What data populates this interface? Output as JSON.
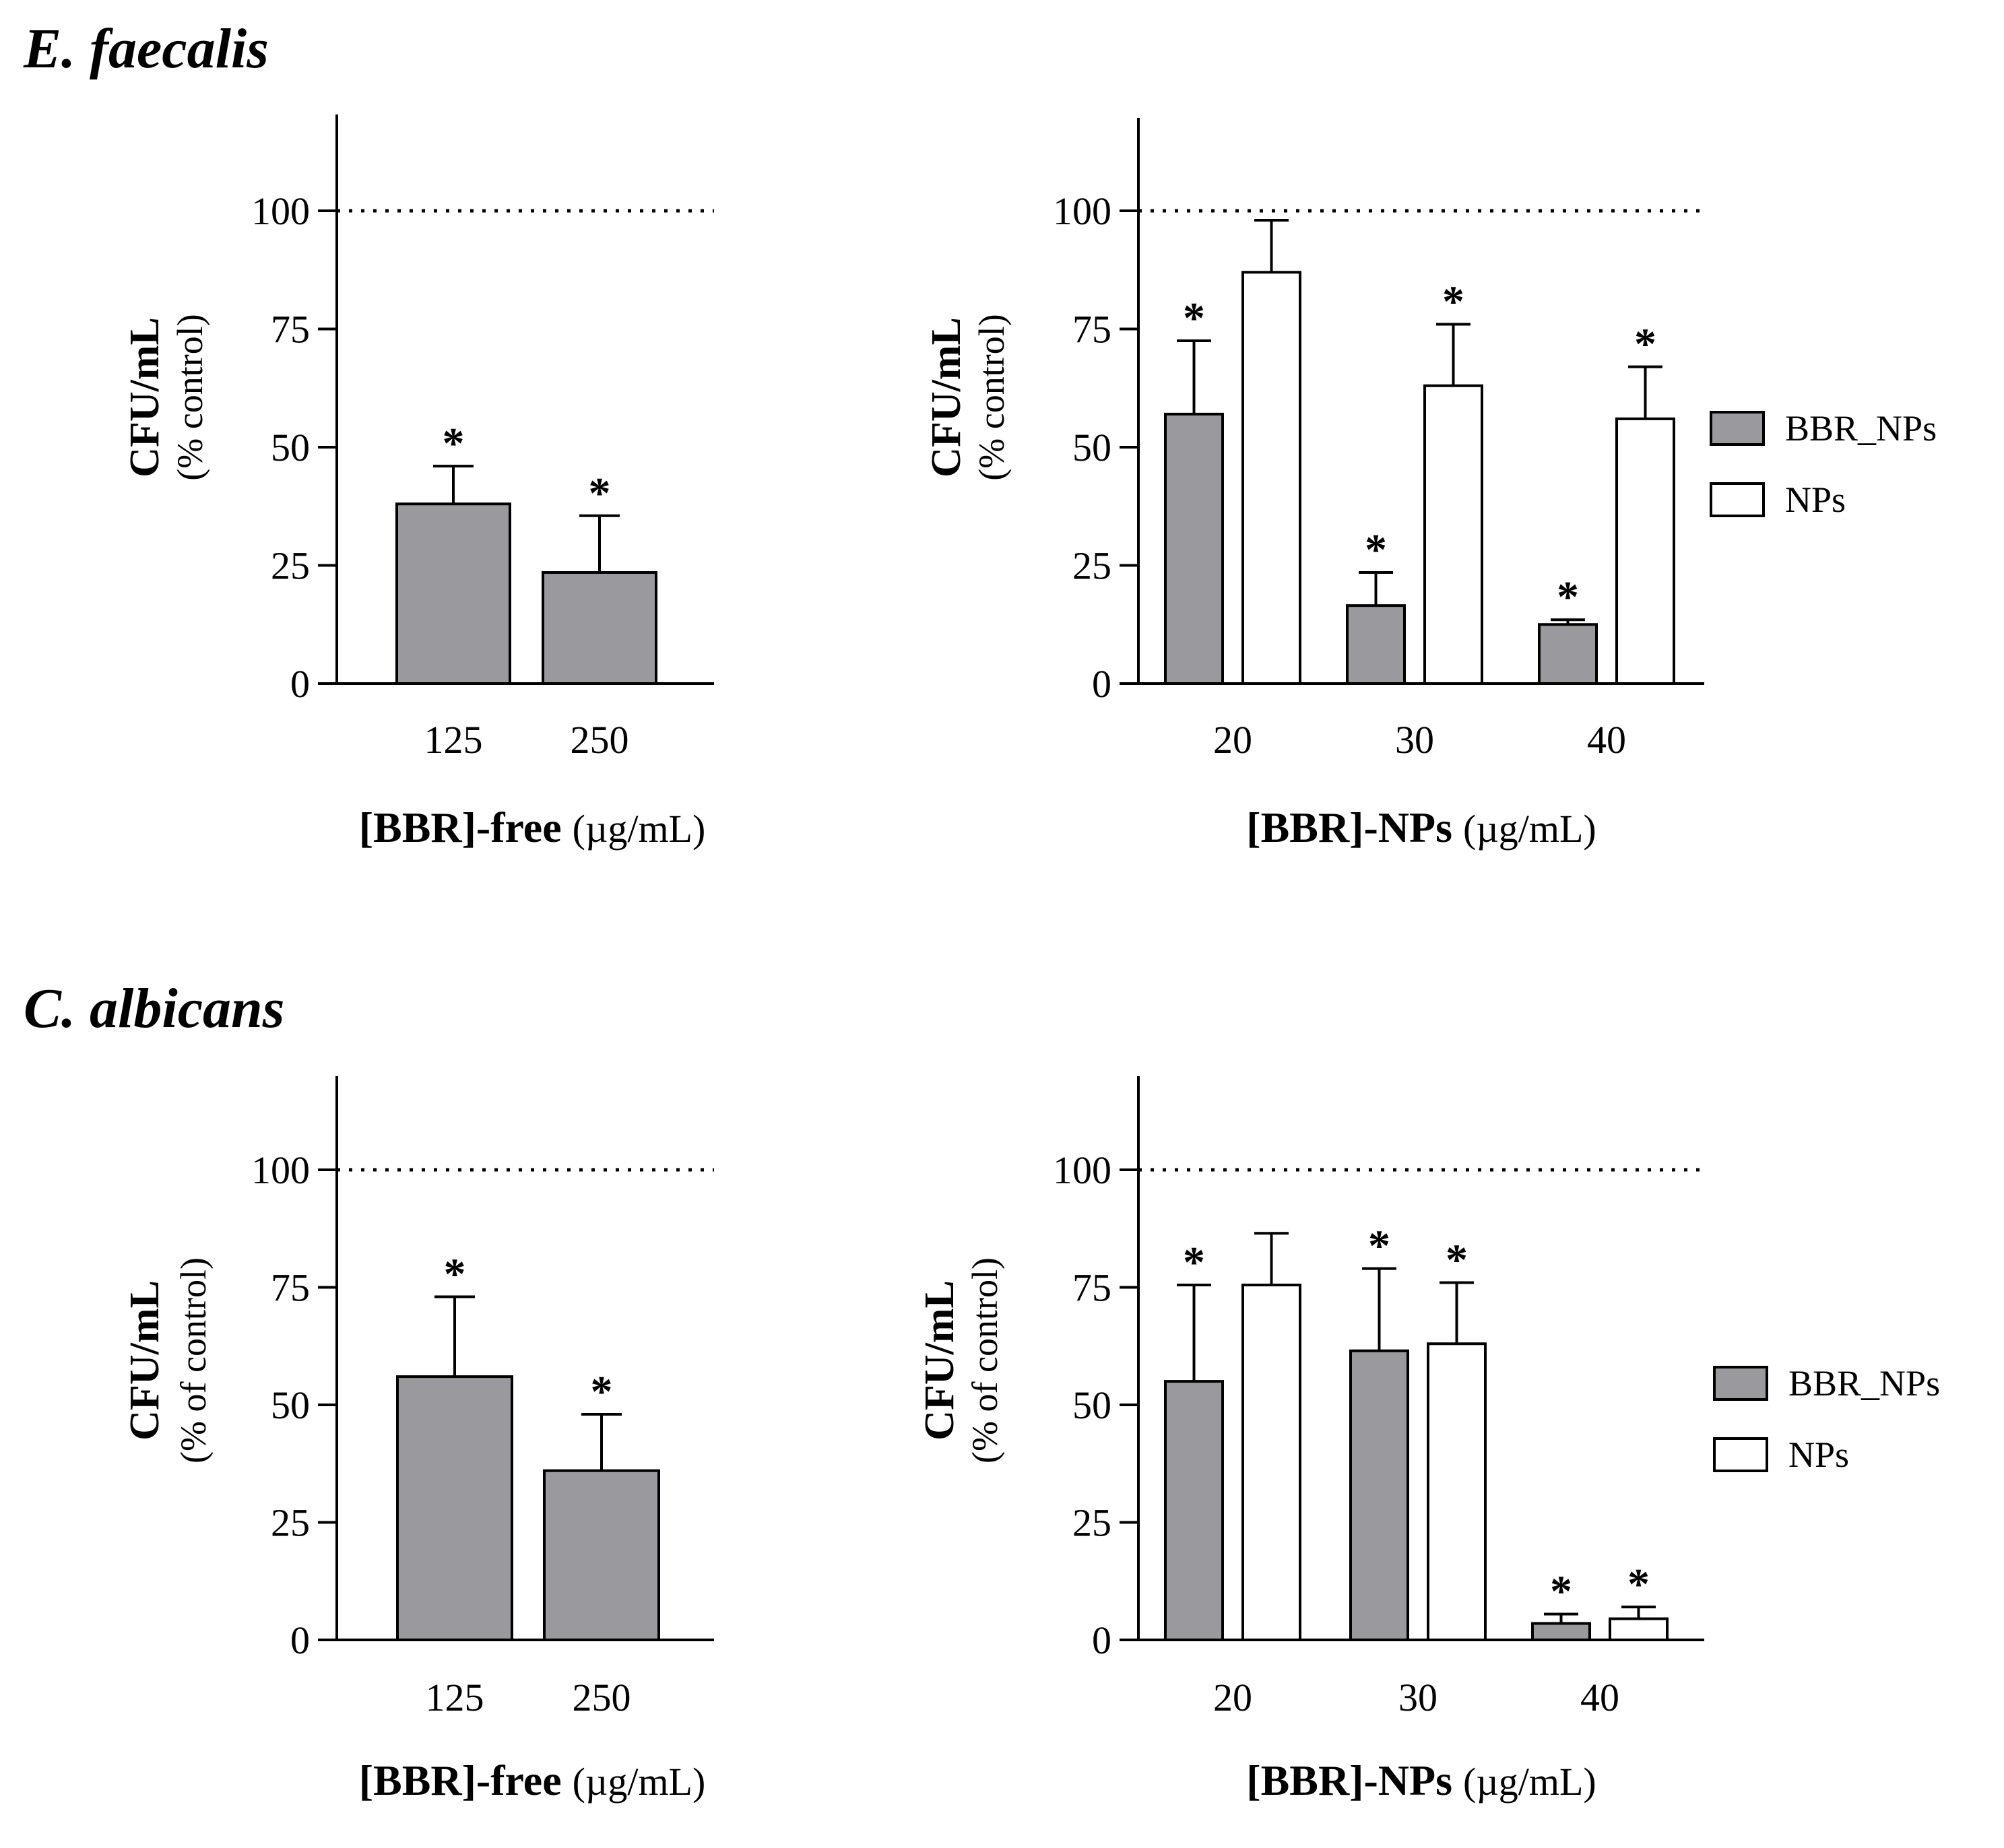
{
  "sections": [
    {
      "title": "E. faecalis"
    },
    {
      "title": "C. albicans"
    }
  ],
  "colors": {
    "bbr_fill": "#9a9a9e",
    "np_fill": "#ffffff",
    "stroke": "#000000"
  },
  "chart_data": [
    {
      "type": "bar",
      "section": "E. faecalis",
      "categories": [
        "125",
        "250"
      ],
      "series": [
        {
          "values": [
            38,
            23.5
          ],
          "errors": [
            8,
            12
          ],
          "significant": [
            true,
            true
          ],
          "fill": "#9a9a9e"
        }
      ],
      "yticks": [
        "0",
        "25",
        "50",
        "75",
        "100"
      ],
      "ylim": [
        0,
        120
      ],
      "reference_line": 100,
      "ylabel": "CFU/mL",
      "ylabel_sub": "(% control)",
      "xlabel": "[BBR]-free",
      "xlabel_unit": "(µg/mL)",
      "legend": []
    },
    {
      "type": "bar",
      "section": "E. faecalis",
      "categories": [
        "20",
        "30",
        "40"
      ],
      "series": [
        {
          "name": "BBR_NPs",
          "values": [
            57,
            16.5,
            12.5
          ],
          "errors": [
            15.5,
            7,
            1
          ],
          "significant": [
            true,
            true,
            true
          ],
          "fill": "#9a9a9e"
        },
        {
          "name": "NPs",
          "values": [
            87,
            63,
            56
          ],
          "errors": [
            11,
            13,
            11
          ],
          "significant": [
            false,
            true,
            true
          ],
          "fill": "#ffffff"
        }
      ],
      "yticks": [
        "0",
        "25",
        "50",
        "75",
        "100"
      ],
      "ylim": [
        0,
        120
      ],
      "reference_line": 100,
      "ylabel": "CFU/mL",
      "ylabel_sub": "(% control)",
      "xlabel": "[BBR]-NPs",
      "xlabel_unit": "(µg/mL)",
      "legend": [
        "BBR_NPs",
        "NPs"
      ],
      "legend_position": "right"
    },
    {
      "type": "bar",
      "section": "C. albicans",
      "categories": [
        "125",
        "250"
      ],
      "series": [
        {
          "values": [
            56,
            36
          ],
          "errors": [
            17,
            12
          ],
          "significant": [
            true,
            true
          ],
          "fill": "#9a9a9e"
        }
      ],
      "yticks": [
        "0",
        "25",
        "50",
        "75",
        "100"
      ],
      "ylim": [
        0,
        120
      ],
      "reference_line": 100,
      "ylabel": "CFU/mL",
      "ylabel_sub": "(% of control)",
      "xlabel": "[BBR]-free",
      "xlabel_unit": "(µg/mL)",
      "legend": []
    },
    {
      "type": "bar",
      "section": "C. albicans",
      "categories": [
        "20",
        "30",
        "40"
      ],
      "series": [
        {
          "name": "BBR_NPs",
          "values": [
            55,
            61.5,
            3.5
          ],
          "errors": [
            20.5,
            17.5,
            2
          ],
          "significant": [
            true,
            true,
            true
          ],
          "fill": "#9a9a9e"
        },
        {
          "name": "NPs",
          "values": [
            75.5,
            63,
            4.5
          ],
          "errors": [
            11,
            13,
            2.5
          ],
          "significant": [
            false,
            true,
            true
          ],
          "fill": "#ffffff"
        }
      ],
      "yticks": [
        "0",
        "25",
        "50",
        "75",
        "100"
      ],
      "ylim": [
        0,
        120
      ],
      "reference_line": 100,
      "ylabel": "CFU/mL",
      "ylabel_sub": "(% of control)",
      "xlabel": "[BBR]-NPs",
      "xlabel_unit": "(µg/mL)",
      "legend": [
        "BBR_NPs",
        "NPs"
      ],
      "legend_position": "right"
    }
  ]
}
